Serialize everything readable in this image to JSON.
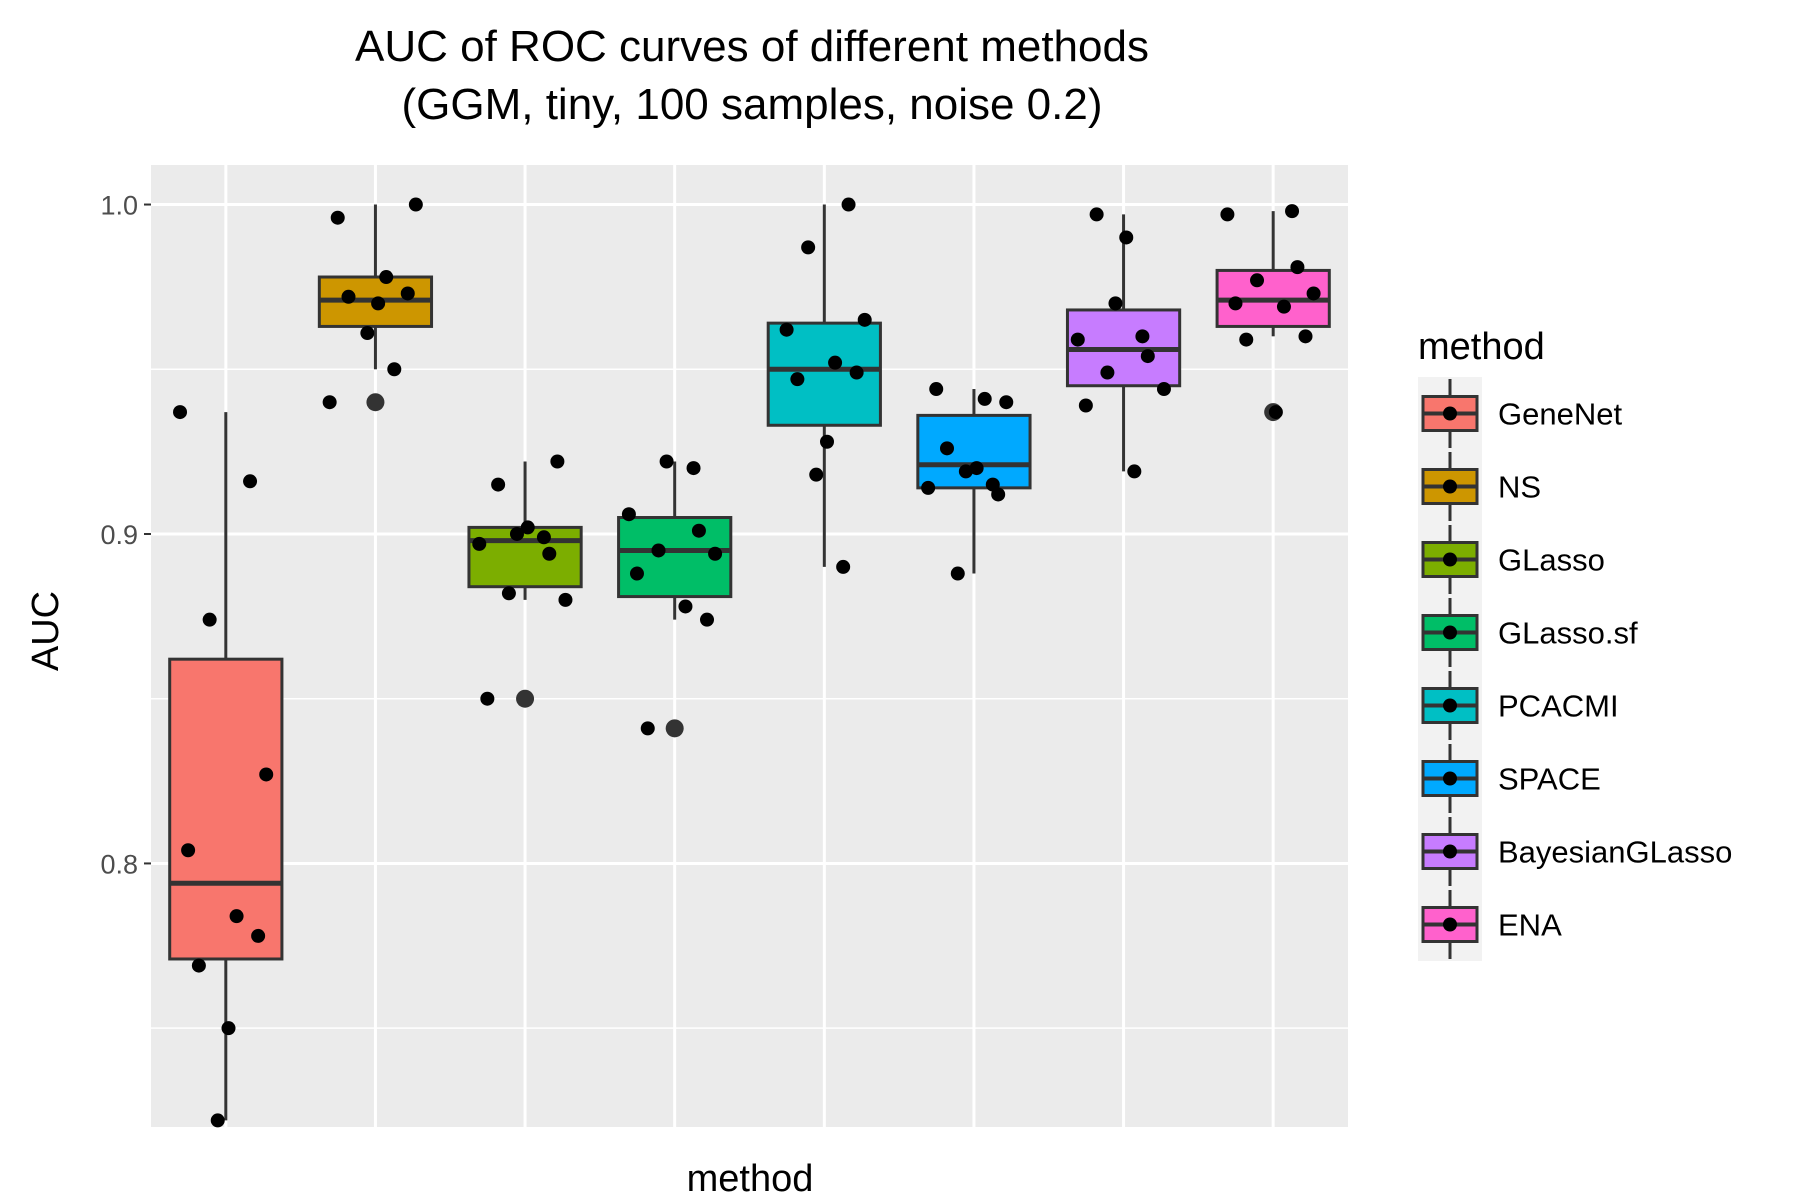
{
  "chart_data": {
    "type": "boxplot",
    "title": "AUC of ROC curves of different methods",
    "subtitle": "(GGM, tiny, 100 samples, noise 0.2)",
    "xlabel": "method",
    "ylabel": "AUC",
    "ylim": [
      0.72,
      1.012
    ],
    "yticks": [
      0.8,
      0.9,
      1.0
    ],
    "ytick_labels": [
      "0.8",
      "0.9",
      "1.0"
    ],
    "grid": true,
    "legend": {
      "title": "method",
      "placement": "right"
    },
    "series": [
      {
        "name": "GeneNet",
        "color": "#F8766D",
        "box": {
          "min": 0.722,
          "q1": 0.771,
          "median": 0.794,
          "q3": 0.862,
          "max": 0.937
        },
        "outliers": [],
        "points": [
          0.937,
          0.916,
          0.874,
          0.827,
          0.804,
          0.784,
          0.778,
          0.769,
          0.75,
          0.722
        ]
      },
      {
        "name": "NS",
        "color": "#CD9600",
        "box": {
          "min": 0.95,
          "q1": 0.963,
          "median": 0.971,
          "q3": 0.978,
          "max": 1.0
        },
        "outliers": [
          0.94
        ],
        "points": [
          1.0,
          0.996,
          0.978,
          0.973,
          0.972,
          0.97,
          0.961,
          0.95,
          0.94
        ]
      },
      {
        "name": "GLasso",
        "color": "#7CAE00",
        "box": {
          "min": 0.88,
          "q1": 0.884,
          "median": 0.898,
          "q3": 0.902,
          "max": 0.922
        },
        "outliers": [
          0.85
        ],
        "points": [
          0.922,
          0.915,
          0.902,
          0.9,
          0.899,
          0.897,
          0.894,
          0.882,
          0.88,
          0.85
        ]
      },
      {
        "name": "GLasso.sf",
        "color": "#00BE67",
        "box": {
          "min": 0.874,
          "q1": 0.881,
          "median": 0.895,
          "q3": 0.905,
          "max": 0.922
        },
        "outliers": [
          0.841
        ],
        "points": [
          0.922,
          0.92,
          0.906,
          0.901,
          0.895,
          0.894,
          0.888,
          0.878,
          0.874,
          0.841
        ]
      },
      {
        "name": "PCACMI",
        "color": "#00BFC4",
        "box": {
          "min": 0.89,
          "q1": 0.933,
          "median": 0.95,
          "q3": 0.964,
          "max": 1.0
        },
        "outliers": [],
        "points": [
          1.0,
          0.987,
          0.965,
          0.962,
          0.952,
          0.949,
          0.947,
          0.928,
          0.918,
          0.89
        ]
      },
      {
        "name": "SPACE",
        "color": "#00A9FF",
        "box": {
          "min": 0.888,
          "q1": 0.914,
          "median": 0.921,
          "q3": 0.936,
          "max": 0.944
        },
        "outliers": [],
        "points": [
          0.944,
          0.941,
          0.94,
          0.926,
          0.92,
          0.919,
          0.915,
          0.914,
          0.912,
          0.888
        ]
      },
      {
        "name": "BayesianGLasso",
        "color": "#C77CFF",
        "box": {
          "min": 0.919,
          "q1": 0.945,
          "median": 0.956,
          "q3": 0.968,
          "max": 0.997
        },
        "outliers": [],
        "points": [
          0.997,
          0.99,
          0.97,
          0.96,
          0.959,
          0.954,
          0.949,
          0.944,
          0.939,
          0.919
        ]
      },
      {
        "name": "ENA",
        "color": "#FF61CC",
        "box": {
          "min": 0.96,
          "q1": 0.963,
          "median": 0.971,
          "q3": 0.98,
          "max": 0.998
        },
        "outliers": [
          0.937
        ],
        "points": [
          0.998,
          0.997,
          0.981,
          0.977,
          0.973,
          0.97,
          0.969,
          0.96,
          0.959,
          0.937
        ]
      }
    ]
  }
}
